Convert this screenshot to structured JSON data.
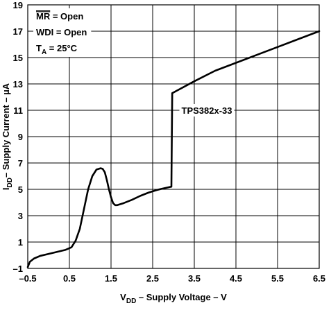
{
  "chart_data": {
    "type": "line",
    "title": "",
    "xlabel": {
      "prefix": "V",
      "sub": "DD",
      "rest": " – Supply Voltage – V"
    },
    "ylabel": {
      "prefix": "I",
      "sub": "DD",
      "rest": "– Supply Current – µA"
    },
    "xlim": [
      -0.5,
      6.5
    ],
    "ylim": [
      -1,
      19
    ],
    "x_ticks": [
      -0.5,
      0.5,
      1.5,
      2.5,
      3.5,
      4.5,
      5.5,
      6.5
    ],
    "x_tick_labels": [
      "–0.5",
      "0.5",
      "1.5",
      "2.5",
      "3.5",
      "4.5",
      "5.5",
      "6.5"
    ],
    "y_ticks": [
      -1,
      1,
      3,
      5,
      7,
      9,
      11,
      13,
      15,
      17,
      19
    ],
    "y_tick_labels": [
      "–1",
      "1",
      "3",
      "5",
      "7",
      "9",
      "11",
      "13",
      "15",
      "17",
      "19"
    ],
    "grid": true,
    "conditions": [
      {
        "type": "overline",
        "main": "MR",
        "rest": " = Open"
      },
      {
        "type": "plain",
        "text": "WDI = Open"
      },
      {
        "type": "sub",
        "main": "T",
        "sub": "A",
        "rest": " = 25°C"
      }
    ],
    "series": [
      {
        "name": "TPS382x-33",
        "x": [
          -0.5,
          -0.45,
          -0.35,
          -0.2,
          0.0,
          0.2,
          0.4,
          0.55,
          0.65,
          0.75,
          0.85,
          0.95,
          1.05,
          1.15,
          1.25,
          1.3,
          1.35,
          1.4,
          1.45,
          1.5,
          1.55,
          1.6,
          1.65,
          1.8,
          2.0,
          2.2,
          2.4,
          2.6,
          2.8,
          2.95,
          2.97,
          3.0,
          3.5,
          4.0,
          4.5,
          5.0,
          5.5,
          6.0,
          6.5
        ],
        "values": [
          -0.9,
          -0.5,
          -0.25,
          -0.05,
          0.1,
          0.25,
          0.4,
          0.6,
          1.1,
          2.0,
          3.5,
          5.0,
          6.0,
          6.5,
          6.6,
          6.55,
          6.3,
          5.7,
          5.0,
          4.4,
          3.95,
          3.8,
          3.8,
          3.95,
          4.2,
          4.5,
          4.75,
          4.95,
          5.1,
          5.2,
          12.3,
          12.35,
          13.2,
          14.0,
          14.6,
          15.2,
          15.8,
          16.4,
          17.0
        ],
        "label_position": {
          "x": 3.8,
          "y": 11
        },
        "leaders": [
          [
            3.05,
            11
          ],
          [
            4.6,
            11
          ]
        ]
      }
    ]
  }
}
